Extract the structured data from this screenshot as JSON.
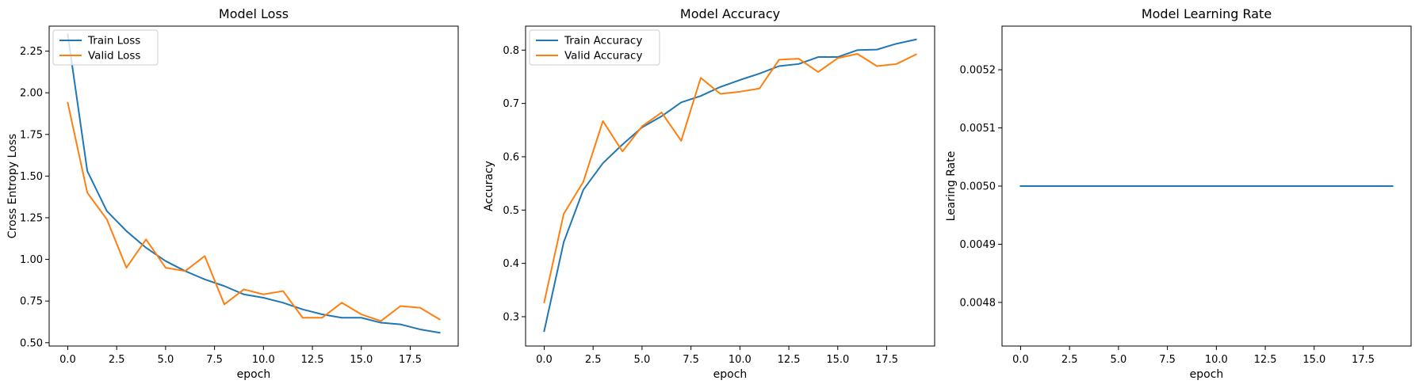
{
  "colors": {
    "train": "#1f77b4",
    "valid": "#ff7f0e",
    "axis": "#000000",
    "legend_border": "#cccccc"
  },
  "chart_data": [
    {
      "type": "line",
      "title": "Model Loss",
      "xlabel": "epoch",
      "ylabel": "Cross Entropy Loss",
      "xlim": [
        -0.95,
        19.95
      ],
      "ylim": [
        0.48,
        2.4
      ],
      "xticks": [
        0.0,
        2.5,
        5.0,
        7.5,
        10.0,
        12.5,
        15.0,
        17.5
      ],
      "xtick_labels": [
        "0.0",
        "2.5",
        "5.0",
        "7.5",
        "10.0",
        "12.5",
        "15.0",
        "17.5"
      ],
      "yticks": [
        0.5,
        0.75,
        1.0,
        1.25,
        1.5,
        1.75,
        2.0,
        2.25
      ],
      "ytick_labels": [
        "0.50",
        "0.75",
        "1.00",
        "1.25",
        "1.50",
        "1.75",
        "2.00",
        "2.25"
      ],
      "legend_position": "top-left",
      "x": [
        0,
        1,
        2,
        3,
        4,
        5,
        6,
        7,
        8,
        9,
        10,
        11,
        12,
        13,
        14,
        15,
        16,
        17,
        18,
        19
      ],
      "series": [
        {
          "name": "Train Loss",
          "color": "#1f77b4",
          "values": [
            2.35,
            1.53,
            1.29,
            1.17,
            1.07,
            0.99,
            0.93,
            0.88,
            0.84,
            0.79,
            0.77,
            0.74,
            0.7,
            0.67,
            0.65,
            0.65,
            0.62,
            0.61,
            0.58,
            0.56
          ]
        },
        {
          "name": "Valid Loss",
          "color": "#ff7f0e",
          "values": [
            1.94,
            1.4,
            1.24,
            0.95,
            1.12,
            0.95,
            0.93,
            1.02,
            0.73,
            0.82,
            0.79,
            0.81,
            0.65,
            0.65,
            0.74,
            0.67,
            0.63,
            0.72,
            0.71,
            0.64
          ]
        }
      ]
    },
    {
      "type": "line",
      "title": "Model Accuracy",
      "xlabel": "epoch",
      "ylabel": "Accuracy",
      "xlim": [
        -0.95,
        19.95
      ],
      "ylim": [
        0.245,
        0.845
      ],
      "xticks": [
        0.0,
        2.5,
        5.0,
        7.5,
        10.0,
        12.5,
        15.0,
        17.5
      ],
      "xtick_labels": [
        "0.0",
        "2.5",
        "5.0",
        "7.5",
        "10.0",
        "12.5",
        "15.0",
        "17.5"
      ],
      "yticks": [
        0.3,
        0.4,
        0.5,
        0.6,
        0.7,
        0.8
      ],
      "ytick_labels": [
        "0.3",
        "0.4",
        "0.5",
        "0.6",
        "0.7",
        "0.8"
      ],
      "legend_position": "top-left",
      "x": [
        0,
        1,
        2,
        3,
        4,
        5,
        6,
        7,
        8,
        9,
        10,
        11,
        12,
        13,
        14,
        15,
        16,
        17,
        18,
        19
      ],
      "series": [
        {
          "name": "Train Accuracy",
          "color": "#1f77b4",
          "values": [
            0.273,
            0.44,
            0.538,
            0.588,
            0.623,
            0.655,
            0.676,
            0.702,
            0.714,
            0.731,
            0.744,
            0.756,
            0.77,
            0.774,
            0.787,
            0.787,
            0.8,
            0.801,
            0.812,
            0.82
          ]
        },
        {
          "name": "Valid Accuracy",
          "color": "#ff7f0e",
          "values": [
            0.327,
            0.493,
            0.553,
            0.667,
            0.61,
            0.657,
            0.683,
            0.63,
            0.748,
            0.718,
            0.722,
            0.728,
            0.782,
            0.784,
            0.759,
            0.785,
            0.793,
            0.77,
            0.774,
            0.792
          ]
        }
      ]
    },
    {
      "type": "line",
      "title": "Model Learning Rate",
      "xlabel": "epoch",
      "ylabel": "Learing Rate",
      "xlim": [
        -0.95,
        19.95
      ],
      "ylim": [
        0.004725,
        0.005275
      ],
      "xticks": [
        0.0,
        2.5,
        5.0,
        7.5,
        10.0,
        12.5,
        15.0,
        17.5
      ],
      "xtick_labels": [
        "0.0",
        "2.5",
        "5.0",
        "7.5",
        "10.0",
        "12.5",
        "15.0",
        "17.5"
      ],
      "yticks": [
        0.0048,
        0.0049,
        0.005,
        0.0051,
        0.0052
      ],
      "ytick_labels": [
        "0.0048",
        "0.0049",
        "0.0050",
        "0.0051",
        "0.0052"
      ],
      "legend_position": "none",
      "x": [
        0,
        19
      ],
      "series": [
        {
          "color": "#1f77b4",
          "values": [
            0.005,
            0.005
          ]
        }
      ]
    }
  ]
}
